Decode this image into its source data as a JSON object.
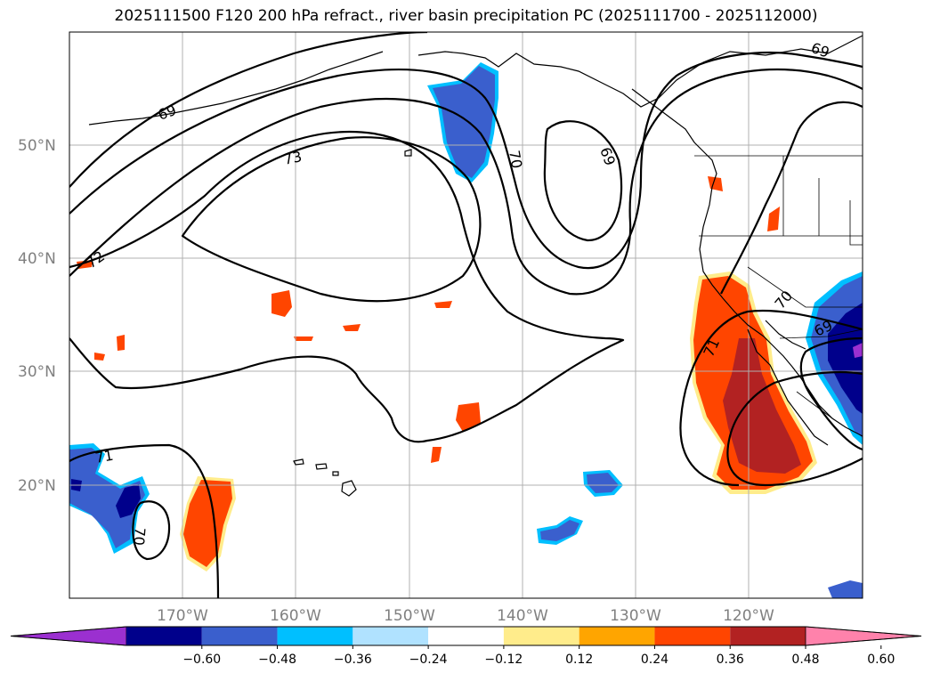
{
  "title": "2025111500 F120 200 hPa refract., river basin precipitation PC (2025111700 - 2025112000)",
  "lat_labels": [
    "50°N",
    "40°N",
    "30°N",
    "20°N"
  ],
  "lon_labels": [
    "170°W",
    "160°W",
    "150°W",
    "140°W",
    "130°W",
    "120°W"
  ],
  "contour_labels": [
    "69",
    "73",
    "72",
    "70",
    "69",
    "71",
    "70",
    "71",
    "70",
    "69"
  ],
  "colorbar": {
    "ticks": [
      "−0.60",
      "−0.48",
      "−0.36",
      "−0.24",
      "−0.12",
      "0.12",
      "0.24",
      "0.36",
      "0.48",
      "0.60"
    ],
    "colors": [
      "#9b30d0",
      "#00008b",
      "#3a5fcd",
      "#00bfff",
      "#b0e2ff",
      "#ffffff",
      "#ffec8b",
      "#ffa500",
      "#ff4500",
      "#b22222",
      "#ff82ab"
    ]
  }
}
